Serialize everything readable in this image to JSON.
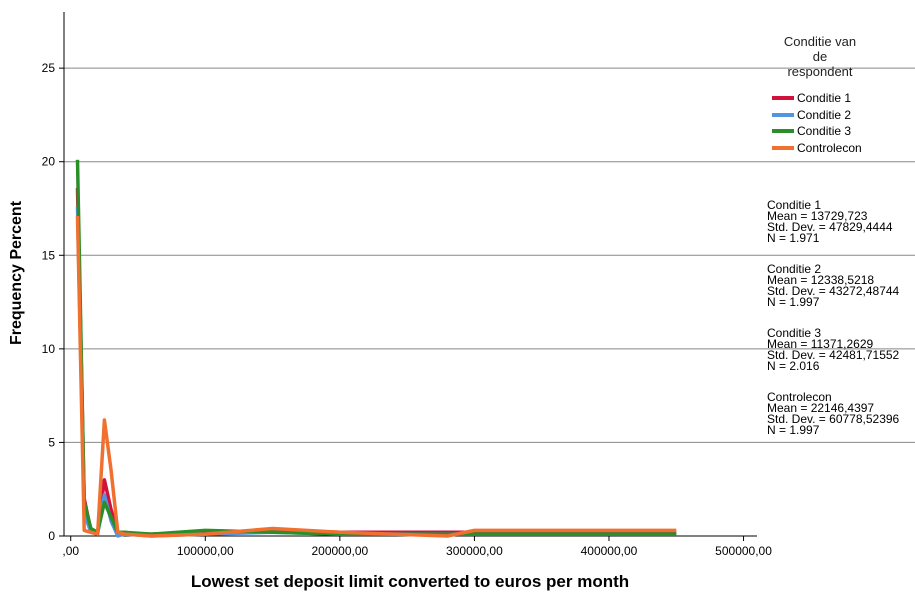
{
  "chart_data": {
    "type": "line",
    "xlabel": "Lowest set deposit limit converted to euros per month",
    "ylabel": "Frequency Percent",
    "xlim": [
      -5000,
      510000
    ],
    "ylim": [
      0,
      28
    ],
    "x_ticks": [
      0,
      100000,
      200000,
      300000,
      400000,
      500000
    ],
    "x_tick_labels": [
      ",00",
      "100000,00",
      "200000,00",
      "300000,00",
      "400000,00",
      "500000,00"
    ],
    "y_ticks": [
      0,
      5,
      10,
      15,
      20,
      25
    ],
    "y_tick_labels": [
      "0",
      "5",
      "10",
      "15",
      "20",
      "25"
    ],
    "grid": "horizontal",
    "legend": {
      "title": [
        "Conditie van",
        "de",
        "respondent"
      ],
      "placement": "right"
    },
    "series": [
      {
        "name": "Conditie 1",
        "color": "#d0123c",
        "points": [
          [
            5000,
            18.6
          ],
          [
            10000,
            2.0
          ],
          [
            15000,
            0.3
          ],
          [
            20000,
            0.2
          ],
          [
            25000,
            3.0
          ],
          [
            30000,
            1.4
          ],
          [
            35000,
            0.2
          ],
          [
            40000,
            0.1
          ],
          [
            60000,
            0.1
          ],
          [
            100000,
            0.2
          ],
          [
            150000,
            0.3
          ],
          [
            200000,
            0.2
          ],
          [
            300000,
            0.2
          ],
          [
            400000,
            0.2
          ],
          [
            450000,
            0.2
          ]
        ]
      },
      {
        "name": "Conditie 2",
        "color": "#5294e2",
        "points": [
          [
            5000,
            17.6
          ],
          [
            10000,
            1.2
          ],
          [
            15000,
            0.2
          ],
          [
            20000,
            0.1
          ],
          [
            25000,
            2.2
          ],
          [
            30000,
            0.8
          ],
          [
            35000,
            0.0
          ],
          [
            40000,
            0.1
          ],
          [
            60000,
            0.0
          ],
          [
            100000,
            0.1
          ],
          [
            150000,
            0.2
          ],
          [
            200000,
            0.1
          ],
          [
            300000,
            0.1
          ],
          [
            400000,
            0.1
          ],
          [
            450000,
            0.1
          ]
        ]
      },
      {
        "name": "Conditie 3",
        "color": "#2a8f29",
        "points": [
          [
            5000,
            20.1
          ],
          [
            10000,
            1.8
          ],
          [
            15000,
            0.4
          ],
          [
            20000,
            0.2
          ],
          [
            25000,
            1.8
          ],
          [
            30000,
            1.0
          ],
          [
            35000,
            0.2
          ],
          [
            40000,
            0.2
          ],
          [
            60000,
            0.1
          ],
          [
            100000,
            0.3
          ],
          [
            150000,
            0.2
          ],
          [
            200000,
            0.1
          ],
          [
            300000,
            0.1
          ],
          [
            400000,
            0.1
          ],
          [
            450000,
            0.1
          ]
        ]
      },
      {
        "name": "Controlecon",
        "color": "#f07030",
        "points": [
          [
            5000,
            17.1
          ],
          [
            10000,
            0.3
          ],
          [
            15000,
            0.2
          ],
          [
            20000,
            0.1
          ],
          [
            25000,
            6.2
          ],
          [
            30000,
            3.5
          ],
          [
            35000,
            0.2
          ],
          [
            40000,
            0.1
          ],
          [
            60000,
            0.0
          ],
          [
            100000,
            0.1
          ],
          [
            150000,
            0.4
          ],
          [
            200000,
            0.2
          ],
          [
            280000,
            0.0
          ],
          [
            300000,
            0.3
          ],
          [
            400000,
            0.3
          ],
          [
            450000,
            0.3
          ]
        ]
      }
    ],
    "statistics": [
      {
        "name": "Conditie 1",
        "mean": "Mean = 13729,723",
        "sd": "Std. Dev. = 47829,4444",
        "n": "N = 1.971"
      },
      {
        "name": "Conditie 2",
        "mean": "Mean = 12338,5218",
        "sd": "Std. Dev. = 43272,48744",
        "n": "N = 1.997"
      },
      {
        "name": "Conditie 3",
        "mean": "Mean = 11371,2629",
        "sd": "Std. Dev. = 42481,71552",
        "n": "N = 2.016"
      },
      {
        "name": "Controlecon",
        "mean": "Mean = 22146,4397",
        "sd": "Std. Dev. = 60778,52396",
        "n": "N = 1.997"
      }
    ]
  }
}
